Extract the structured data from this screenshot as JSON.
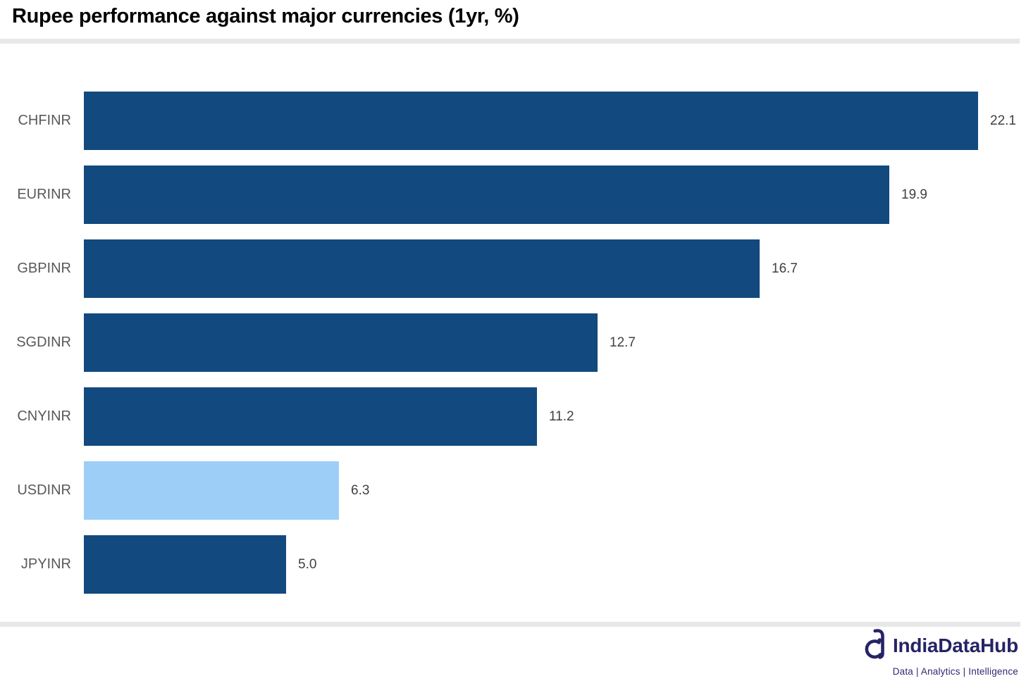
{
  "header": {
    "title": "Rupee performance against major currencies (1yr, %)"
  },
  "chart_data": {
    "type": "bar",
    "orientation": "horizontal",
    "title": "Rupee performance against major currencies (1yr, %)",
    "categories": [
      "CHFINR",
      "EURINR",
      "GBPINR",
      "SGDINR",
      "CNYINR",
      "USDINR",
      "JPYINR"
    ],
    "values": [
      22.1,
      19.9,
      16.7,
      12.7,
      11.2,
      6.3,
      5.0
    ],
    "value_labels": [
      "22.1",
      "19.9",
      "16.7",
      "12.7",
      "11.2",
      "6.3",
      "5.0"
    ],
    "xlabel": "",
    "ylabel": "",
    "xlim": [
      0,
      22.1
    ],
    "grid": false,
    "legend": "none",
    "highlight_index": 5,
    "colors": {
      "bar_default": "#12497E",
      "bar_highlight": "#9DCEF7",
      "category_label": "#595959",
      "value_label": "#404040",
      "divider": "#E8E8E8"
    }
  },
  "footer": {
    "brand": "IndiaDataHub",
    "tagline": "Data | Analytics | Intelligence",
    "brand_color": "#262366"
  }
}
